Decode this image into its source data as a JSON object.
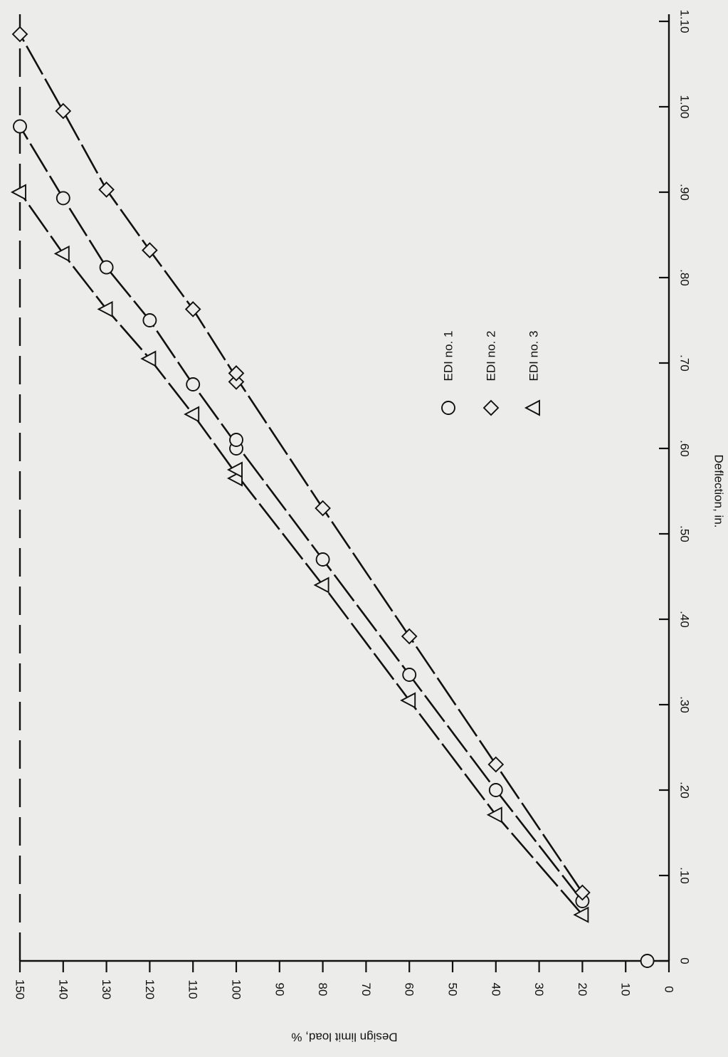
{
  "chart_data": {
    "type": "line",
    "orientation": "rotated-90-cw",
    "title": "",
    "xlabel": "Deflection, in.",
    "ylabel": "Design limit load, %",
    "xlim": [
      0,
      1.1
    ],
    "ylim": [
      0,
      150
    ],
    "x_ticks": [
      0,
      0.1,
      0.2,
      0.3,
      0.4,
      0.5,
      0.6,
      0.7,
      0.8,
      0.9,
      1.0,
      1.1
    ],
    "x_tick_labels": [
      "0",
      ".10",
      ".20",
      ".30",
      ".40",
      ".50",
      ".60",
      ".70",
      ".80",
      ".90",
      "1.00",
      "1.10"
    ],
    "y_ticks": [
      0,
      10,
      20,
      30,
      40,
      50,
      60,
      70,
      80,
      90,
      100,
      110,
      120,
      130,
      140,
      150
    ],
    "y_tick_labels": [
      "0",
      "10",
      "20",
      "30",
      "40",
      "50",
      "60",
      "70",
      "80",
      "90",
      "100",
      "110",
      "120",
      "130",
      "140",
      "150"
    ],
    "grid": false,
    "legend_position": "center-right",
    "origin_marker": {
      "x": 0,
      "y": 5
    },
    "series": [
      {
        "name": "EDI no. 1",
        "marker": "circle",
        "x": [
          0.07,
          0.2,
          0.335,
          0.47,
          0.6,
          0.61,
          0.675,
          0.75,
          0.812,
          0.893,
          0.977
        ],
        "y": [
          20,
          40,
          60,
          80,
          100,
          100,
          110,
          120,
          130,
          140,
          150
        ]
      },
      {
        "name": "EDI no. 2",
        "marker": "diamond",
        "x": [
          0.08,
          0.23,
          0.38,
          0.53,
          0.678,
          0.688,
          0.763,
          0.832,
          0.903,
          0.995,
          1.085
        ],
        "y": [
          20,
          40,
          60,
          80,
          100,
          100,
          110,
          120,
          130,
          140,
          150
        ]
      },
      {
        "name": "EDI no. 3",
        "marker": "triangle",
        "x": [
          0.054,
          0.171,
          0.305,
          0.44,
          0.565,
          0.575,
          0.64,
          0.705,
          0.763,
          0.828,
          0.9
        ],
        "y": [
          20,
          40,
          60,
          80,
          100,
          100,
          110,
          120,
          130,
          140,
          150
        ]
      }
    ]
  }
}
